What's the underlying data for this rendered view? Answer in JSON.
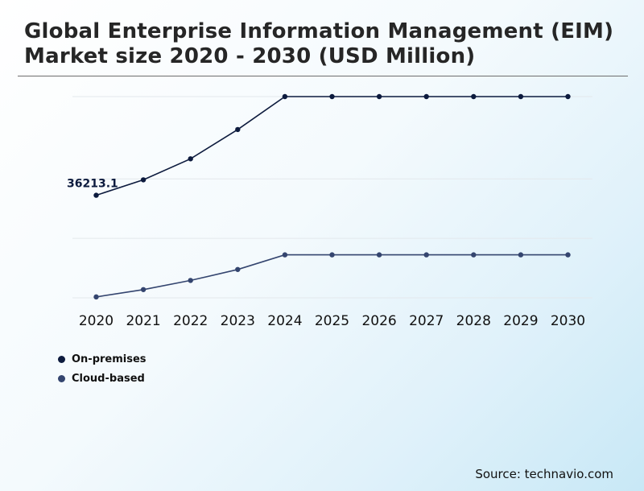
{
  "title": "Global Enterprise Information Management (EIM) Market size 2020 - 2030 (USD Million)",
  "source": "Source: technavio.com",
  "chart_data": {
    "type": "line",
    "title": "Global Enterprise Information Management (EIM) Market size 2020 - 2030 (USD Million)",
    "x": [
      "2020",
      "2021",
      "2022",
      "2023",
      "2024",
      "2025",
      "2026",
      "2027",
      "2028",
      "2029",
      "2030"
    ],
    "series": [
      {
        "name": "On-premises",
        "color": "#0d1b3e",
        "values": [
          36213.1,
          37900,
          40200,
          43400,
          47000,
          47000,
          47000,
          47000,
          47000,
          47000,
          47000
        ],
        "data_label": "36213.1"
      },
      {
        "name": "Cloud-based",
        "color": "#34456f",
        "values": [
          25100,
          25900,
          26900,
          28100,
          29700,
          29700,
          29700,
          29700,
          29700,
          29700,
          29700
        ]
      }
    ],
    "gridlines": [
      25000,
      31500,
      38000,
      47000
    ],
    "grid": true,
    "legend": "bottom-left",
    "yaxis_labels": false
  }
}
